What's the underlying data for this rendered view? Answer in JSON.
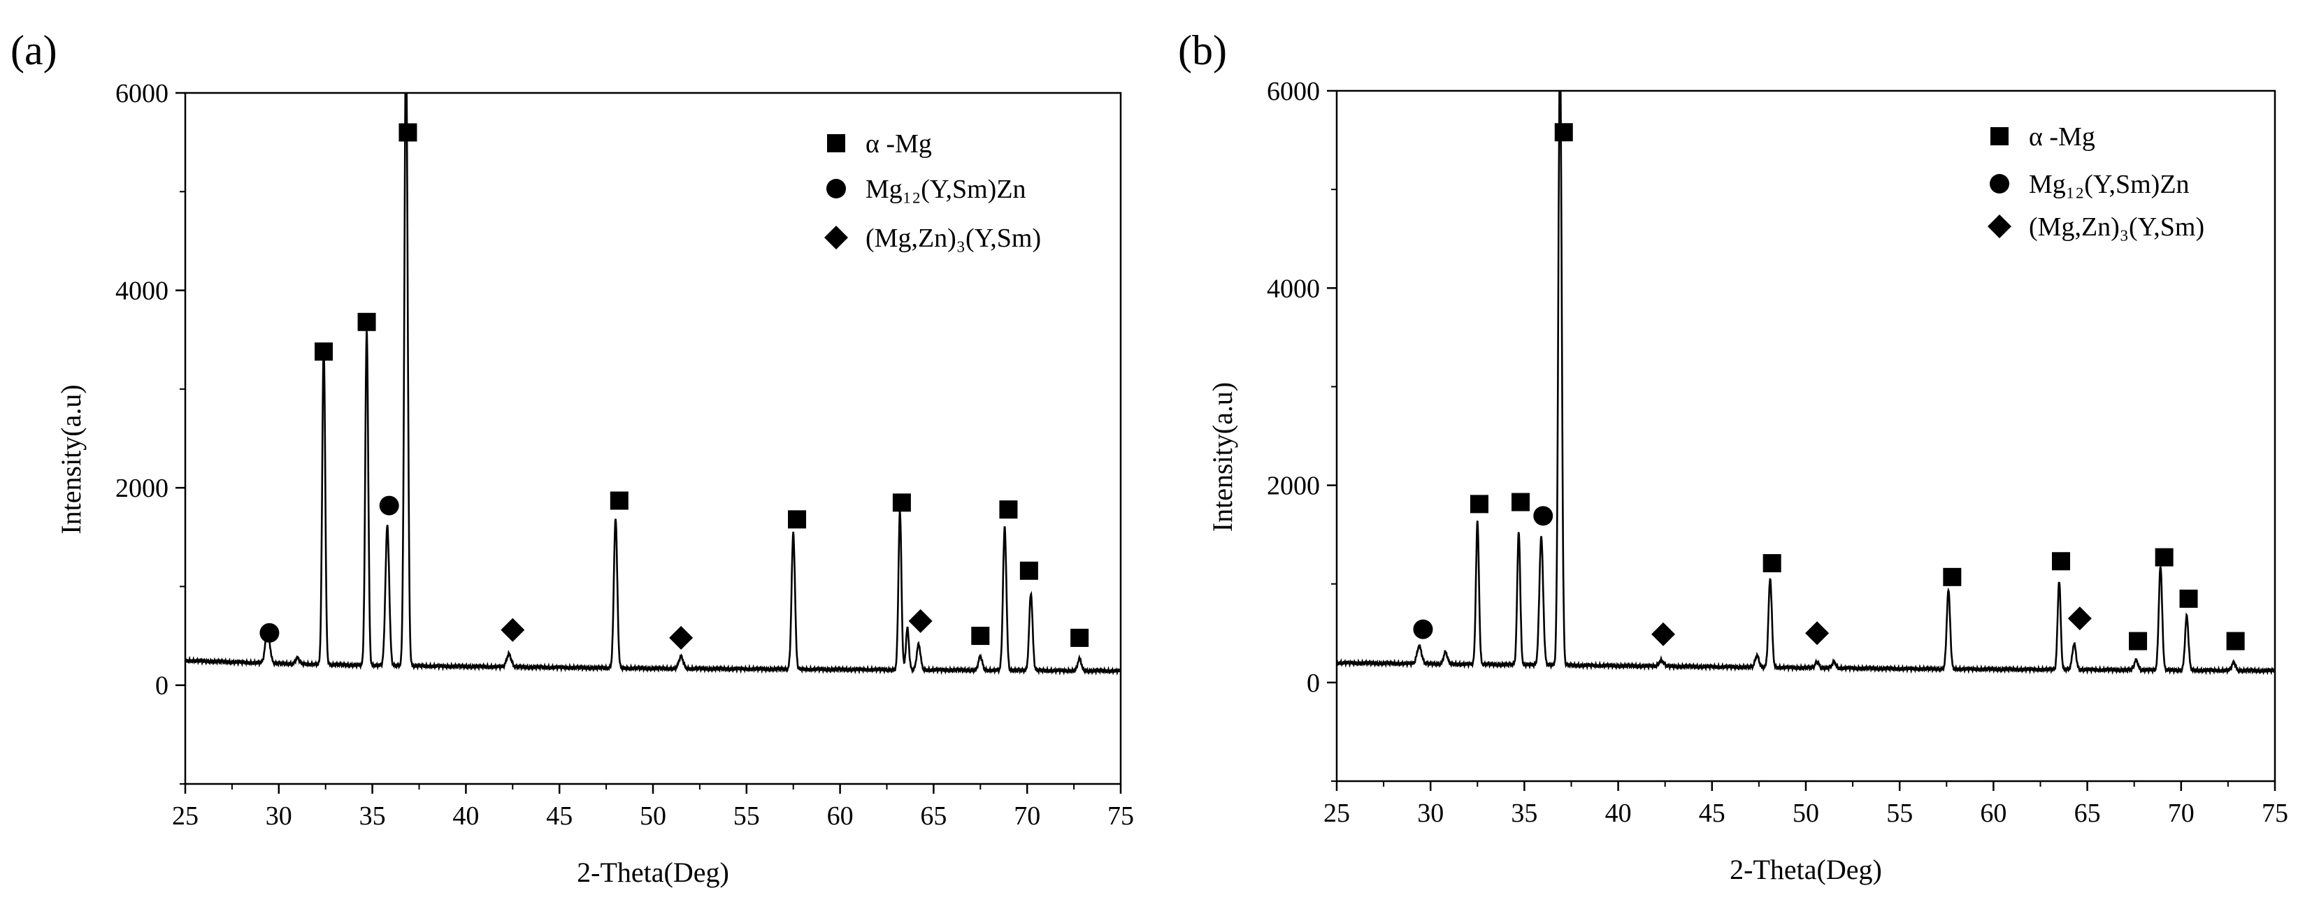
{
  "figure": {
    "panels": [
      {
        "label": "(a)"
      },
      {
        "label": "(b)"
      }
    ]
  },
  "chart_data": [
    {
      "panel_label": "(a)",
      "type": "line",
      "title": "",
      "xlabel": "2-Theta(Deg)",
      "ylabel": "Intensity(a.u)",
      "xlim": [
        25,
        75
      ],
      "ylim": [
        -1000,
        6000
      ],
      "xticks": [
        25,
        30,
        35,
        40,
        45,
        50,
        55,
        60,
        65,
        70,
        75
      ],
      "yticks": [
        0,
        2000,
        4000,
        6000
      ],
      "color": "#000000",
      "legend_position": "top-right",
      "legend": [
        {
          "marker": "square",
          "text": "α -Mg"
        },
        {
          "marker": "circle",
          "text": "Mg₁₂(Y,Sm)Zn"
        },
        {
          "marker": "diamond",
          "text": "(Mg,Zn)₃(Y,Sm)"
        }
      ],
      "baseline": [
        [
          25,
          250
        ],
        [
          30,
          220
        ],
        [
          35,
          200
        ],
        [
          40,
          190
        ],
        [
          45,
          180
        ],
        [
          50,
          170
        ],
        [
          55,
          165
        ],
        [
          60,
          160
        ],
        [
          65,
          155
        ],
        [
          70,
          150
        ],
        [
          75,
          145
        ]
      ],
      "peaks": [
        {
          "x": 29.4,
          "y": 330,
          "w": 0.12
        },
        {
          "x": 31.0,
          "y": 60,
          "w": 0.1
        },
        {
          "x": 32.4,
          "y": 3250,
          "w": 0.08
        },
        {
          "x": 34.7,
          "y": 3400,
          "w": 0.08
        },
        {
          "x": 35.8,
          "y": 1420,
          "w": 0.1
        },
        {
          "x": 36.8,
          "y": 6300,
          "w": 0.09
        },
        {
          "x": 42.3,
          "y": 130,
          "w": 0.12
        },
        {
          "x": 48.0,
          "y": 1520,
          "w": 0.09
        },
        {
          "x": 51.5,
          "y": 120,
          "w": 0.12
        },
        {
          "x": 57.5,
          "y": 1380,
          "w": 0.09
        },
        {
          "x": 63.2,
          "y": 1600,
          "w": 0.08
        },
        {
          "x": 63.6,
          "y": 420,
          "w": 0.08
        },
        {
          "x": 64.2,
          "y": 260,
          "w": 0.1
        },
        {
          "x": 67.5,
          "y": 140,
          "w": 0.1
        },
        {
          "x": 68.8,
          "y": 1450,
          "w": 0.09
        },
        {
          "x": 70.2,
          "y": 780,
          "w": 0.09
        },
        {
          "x": 72.8,
          "y": 120,
          "w": 0.1
        }
      ],
      "markers": [
        {
          "type": "circle",
          "x": 29.5,
          "y": 530
        },
        {
          "type": "square",
          "x": 32.4,
          "y": 3380
        },
        {
          "type": "square",
          "x": 34.7,
          "y": 3680
        },
        {
          "type": "circle",
          "x": 35.9,
          "y": 1820
        },
        {
          "type": "square",
          "x": 36.9,
          "y": 5600
        },
        {
          "type": "diamond",
          "x": 42.5,
          "y": 560
        },
        {
          "type": "square",
          "x": 48.2,
          "y": 1870
        },
        {
          "type": "diamond",
          "x": 51.5,
          "y": 480
        },
        {
          "type": "square",
          "x": 57.7,
          "y": 1680
        },
        {
          "type": "square",
          "x": 63.3,
          "y": 1850
        },
        {
          "type": "diamond",
          "x": 64.3,
          "y": 650
        },
        {
          "type": "square",
          "x": 67.5,
          "y": 500
        },
        {
          "type": "square",
          "x": 69.0,
          "y": 1780
        },
        {
          "type": "square",
          "x": 70.1,
          "y": 1160
        },
        {
          "type": "square",
          "x": 72.8,
          "y": 480
        }
      ]
    },
    {
      "panel_label": "(b)",
      "type": "line",
      "title": "",
      "xlabel": "2-Theta(Deg)",
      "ylabel": "Intensity(a.u)",
      "xlim": [
        25,
        75
      ],
      "ylim": [
        -1000,
        6000
      ],
      "xticks": [
        25,
        30,
        35,
        40,
        45,
        50,
        55,
        60,
        65,
        70,
        75
      ],
      "yticks": [
        0,
        2000,
        4000,
        6000
      ],
      "color": "#000000",
      "legend_position": "top-right",
      "legend": [
        {
          "marker": "square",
          "text": "α -Mg"
        },
        {
          "marker": "circle",
          "text": "Mg₁₂(Y,Sm)Zn"
        },
        {
          "marker": "diamond",
          "text": "(Mg,Zn)₃(Y,Sm)"
        }
      ],
      "baseline": [
        [
          25,
          200
        ],
        [
          30,
          190
        ],
        [
          35,
          180
        ],
        [
          40,
          170
        ],
        [
          45,
          160
        ],
        [
          50,
          150
        ],
        [
          55,
          140
        ],
        [
          60,
          135
        ],
        [
          65,
          130
        ],
        [
          70,
          125
        ],
        [
          75,
          120
        ]
      ],
      "peaks": [
        {
          "x": 29.4,
          "y": 180,
          "w": 0.12
        },
        {
          "x": 30.8,
          "y": 120,
          "w": 0.1
        },
        {
          "x": 32.5,
          "y": 1450,
          "w": 0.08
        },
        {
          "x": 34.7,
          "y": 1350,
          "w": 0.08
        },
        {
          "x": 35.9,
          "y": 1300,
          "w": 0.1
        },
        {
          "x": 36.9,
          "y": 6300,
          "w": 0.09
        },
        {
          "x": 42.3,
          "y": 60,
          "w": 0.12
        },
        {
          "x": 47.4,
          "y": 120,
          "w": 0.1
        },
        {
          "x": 48.1,
          "y": 900,
          "w": 0.09
        },
        {
          "x": 50.6,
          "y": 60,
          "w": 0.1
        },
        {
          "x": 51.5,
          "y": 60,
          "w": 0.1
        },
        {
          "x": 57.6,
          "y": 800,
          "w": 0.09
        },
        {
          "x": 63.5,
          "y": 900,
          "w": 0.08
        },
        {
          "x": 64.3,
          "y": 260,
          "w": 0.1
        },
        {
          "x": 67.6,
          "y": 100,
          "w": 0.1
        },
        {
          "x": 68.9,
          "y": 1050,
          "w": 0.09
        },
        {
          "x": 70.3,
          "y": 550,
          "w": 0.09
        },
        {
          "x": 72.8,
          "y": 80,
          "w": 0.1
        }
      ],
      "markers": [
        {
          "type": "circle",
          "x": 29.6,
          "y": 540
        },
        {
          "type": "square",
          "x": 32.6,
          "y": 1810
        },
        {
          "type": "square",
          "x": 34.8,
          "y": 1830
        },
        {
          "type": "circle",
          "x": 36.0,
          "y": 1690
        },
        {
          "type": "square",
          "x": 37.1,
          "y": 5580
        },
        {
          "type": "diamond",
          "x": 42.4,
          "y": 490
        },
        {
          "type": "square",
          "x": 48.2,
          "y": 1210
        },
        {
          "type": "diamond",
          "x": 50.6,
          "y": 500
        },
        {
          "type": "square",
          "x": 57.8,
          "y": 1070
        },
        {
          "type": "square",
          "x": 63.6,
          "y": 1230
        },
        {
          "type": "diamond",
          "x": 64.6,
          "y": 650
        },
        {
          "type": "square",
          "x": 67.7,
          "y": 420
        },
        {
          "type": "square",
          "x": 69.1,
          "y": 1270
        },
        {
          "type": "square",
          "x": 70.4,
          "y": 850
        },
        {
          "type": "square",
          "x": 72.9,
          "y": 420
        }
      ]
    }
  ]
}
